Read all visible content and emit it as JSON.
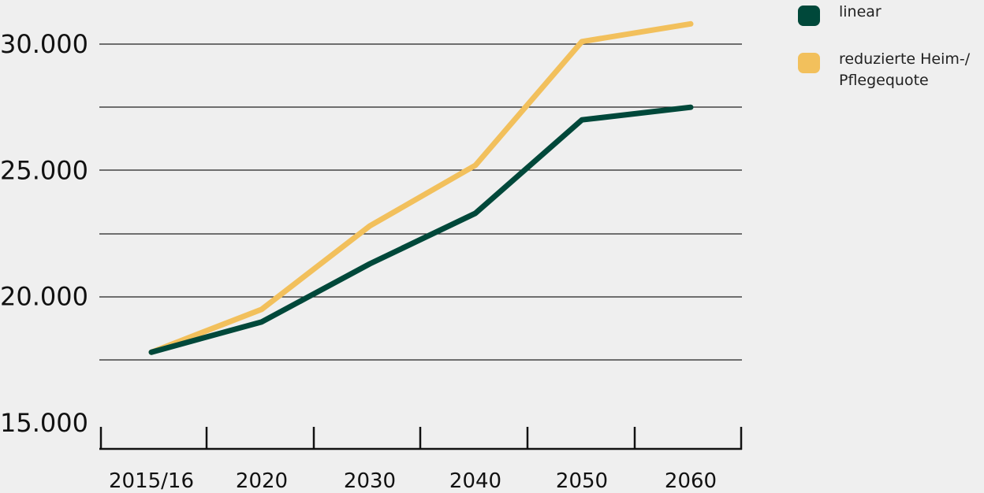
{
  "chart_data": {
    "type": "line",
    "categories": [
      "2015/16",
      "2020",
      "2030",
      "2040",
      "2050",
      "2060"
    ],
    "series": [
      {
        "name": "linear",
        "color": "#00483a",
        "values": [
          17800,
          19000,
          21300,
          23300,
          27000,
          27500
        ]
      },
      {
        "name": "reduzierte Heim-/ Pflegequote",
        "color": "#f2c05c",
        "values": [
          17800,
          19500,
          22800,
          25200,
          30100,
          30800
        ]
      }
    ],
    "ylim": [
      15000,
      31300
    ],
    "yticks": [
      {
        "value": 15000,
        "label": "15.000"
      },
      {
        "value": 20000,
        "label": "20.000"
      },
      {
        "value": 25000,
        "label": "25.000"
      },
      {
        "value": 30000,
        "label": "30.000"
      }
    ],
    "gridlines": [
      17500,
      20000,
      22500,
      25000,
      27500,
      30000
    ],
    "grid": true,
    "legend_position": "top-right",
    "title": "",
    "xlabel": "",
    "ylabel": ""
  },
  "legend": {
    "linear": {
      "label": "linear",
      "color": "#00483a"
    },
    "reduced": {
      "label": "reduzierte Heim-/\nPflegequote",
      "color": "#f2c05c"
    }
  }
}
